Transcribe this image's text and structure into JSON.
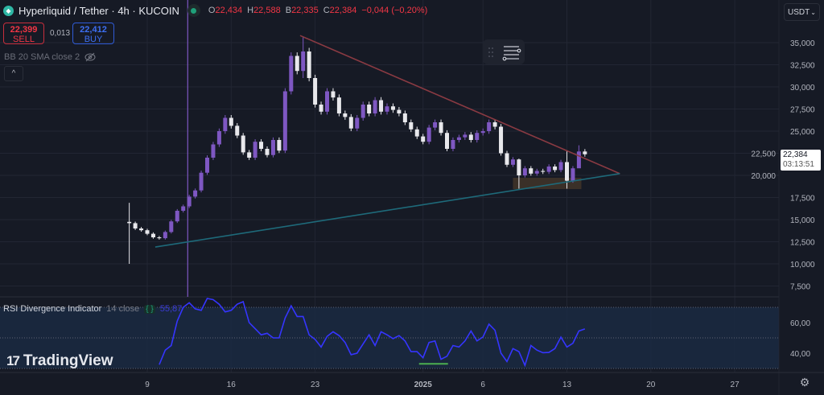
{
  "header": {
    "symbol_title": "Hyperliquid / Tether · 4h · KUCOIN",
    "ohlc": [
      {
        "key": "O",
        "value": "22,434"
      },
      {
        "key": "H",
        "value": "22,588"
      },
      {
        "key": "B",
        "value": "22,335"
      },
      {
        "key": "C",
        "value": "22,384"
      }
    ],
    "change": "−0,044 (−0,20%)",
    "sell_price": "22,399",
    "sell_label": "SELL",
    "spread": "0,013",
    "buy_price": "22,412",
    "buy_label": "BUY",
    "indicator_bb": "BB 20 SMA close 2",
    "collapse_label": "^",
    "currency": "USDT"
  },
  "last_price": {
    "price": "22,384",
    "countdown": "03:13:51"
  },
  "rsi_legend": {
    "name": "RSI Divergence Indicator",
    "params": "14 close",
    "value": "55,87"
  },
  "branding": {
    "text": "TradingView"
  },
  "colors": {
    "background": "#161a25",
    "candle_up": "#7e57c2",
    "candle_down": "#e8e8ec",
    "resistance": "#8a3a42",
    "support": "#1e6a7a",
    "rsi_line": "#3535ff",
    "rsi_band": "#1a2a44",
    "divergence": "#4caf50",
    "zone": "#4a3a2a"
  },
  "chart_data": [
    {
      "type": "candlestick",
      "title": "",
      "price_ticks": [
        "35,000",
        "32,500",
        "30,000",
        "27,500",
        "25,000",
        "22,500",
        "20,000",
        "17,500",
        "15,000",
        "12,500",
        "10,000",
        "7,500"
      ],
      "price_tick_values": [
        35000,
        32500,
        30000,
        27500,
        25000,
        22500,
        20000,
        17500,
        15000,
        12500,
        10000,
        7500
      ],
      "ylim": [
        6000,
        37000
      ],
      "x_ticks": [
        {
          "label": "9",
          "date": "2024-12-09"
        },
        {
          "label": "16",
          "date": "2024-12-16"
        },
        {
          "label": "23",
          "date": "2024-12-23"
        },
        {
          "label": "2025",
          "date": "2025-01-01"
        },
        {
          "label": "6",
          "date": "2025-01-06"
        },
        {
          "label": "13",
          "date": "2025-01-13"
        },
        {
          "label": "20",
          "date": "2025-01-20"
        },
        {
          "label": "27",
          "date": "2025-01-27"
        }
      ],
      "grid": true,
      "closes": [
        [
          "2024-12-07T12:00",
          14.6,
          10.0,
          16.9
        ],
        [
          "2024-12-08T00:00",
          14.0
        ],
        [
          "2024-12-08T12:00",
          13.8
        ],
        [
          "2024-12-09T00:00",
          13.4
        ],
        [
          "2024-12-09T12:00",
          13.0
        ],
        [
          "2024-12-10T00:00",
          12.9
        ],
        [
          "2024-12-10T12:00",
          13.6
        ],
        [
          "2024-12-11T00:00",
          14.8
        ],
        [
          "2024-12-11T12:00",
          16.0
        ],
        [
          "2024-12-12T00:00",
          16.5
        ],
        [
          "2024-12-12T12:00",
          17.6
        ],
        [
          "2024-12-13T00:00",
          18.3
        ],
        [
          "2024-12-13T12:00",
          20.3
        ],
        [
          "2024-12-14T00:00",
          22.0
        ],
        [
          "2024-12-14T12:00",
          23.5
        ],
        [
          "2024-12-15T00:00",
          25.0
        ],
        [
          "2024-12-15T12:00",
          26.5
        ],
        [
          "2024-12-16T00:00",
          25.6
        ],
        [
          "2024-12-16T12:00",
          24.5
        ],
        [
          "2024-12-17T00:00",
          22.6
        ],
        [
          "2024-12-17T12:00",
          22.0
        ],
        [
          "2024-12-18T00:00",
          23.8
        ],
        [
          "2024-12-18T12:00",
          23.0
        ],
        [
          "2024-12-19T00:00",
          22.3
        ],
        [
          "2024-12-19T12:00",
          24.0
        ],
        [
          "2024-12-20T00:00",
          22.8
        ],
        [
          "2024-12-20T12:00",
          29.5
        ],
        [
          "2024-12-21T00:00",
          33.5
        ],
        [
          "2024-12-21T12:00",
          31.8
        ],
        [
          "2024-12-22T00:00",
          34.0,
          31.0,
          35.7
        ],
        [
          "2024-12-22T12:00",
          31.0
        ],
        [
          "2024-12-23T00:00",
          28.0
        ],
        [
          "2024-12-23T12:00",
          27.2
        ],
        [
          "2024-12-24T00:00",
          29.5
        ],
        [
          "2024-12-24T12:00",
          28.8
        ],
        [
          "2024-12-25T00:00",
          27.0
        ],
        [
          "2024-12-25T12:00",
          26.6
        ],
        [
          "2024-12-26T00:00",
          25.3
        ],
        [
          "2024-12-26T12:00",
          26.5
        ],
        [
          "2024-12-27T00:00",
          28.0
        ],
        [
          "2024-12-27T12:00",
          27.0
        ],
        [
          "2024-12-28T00:00",
          28.5
        ],
        [
          "2024-12-28T12:00",
          27.2
        ],
        [
          "2024-12-29T00:00",
          27.8
        ],
        [
          "2024-12-29T12:00",
          27.4
        ],
        [
          "2024-12-30T00:00",
          27.0
        ],
        [
          "2024-12-30T12:00",
          26.0
        ],
        [
          "2024-12-31T00:00",
          25.2
        ],
        [
          "2024-12-31T12:00",
          24.4
        ],
        [
          "2025-01-01T00:00",
          23.8
        ],
        [
          "2025-01-01T12:00",
          25.4
        ],
        [
          "2025-01-02T00:00",
          26.0
        ],
        [
          "2025-01-02T12:00",
          24.8
        ],
        [
          "2025-01-03T00:00",
          23.0
        ],
        [
          "2025-01-03T12:00",
          24.0
        ],
        [
          "2025-01-04T00:00",
          24.3
        ],
        [
          "2025-01-04T12:00",
          24.6
        ],
        [
          "2025-01-05T00:00",
          24.0
        ],
        [
          "2025-01-05T12:00",
          24.8
        ],
        [
          "2025-01-06T00:00",
          25.0
        ],
        [
          "2025-01-06T12:00",
          26.0
        ],
        [
          "2025-01-07T00:00",
          25.5
        ],
        [
          "2025-01-07T12:00",
          22.5
        ],
        [
          "2025-01-08T00:00",
          21.2
        ],
        [
          "2025-01-08T12:00",
          21.8
        ],
        [
          "2025-01-09T00:00",
          20.0,
          18.5,
          21.9
        ],
        [
          "2025-01-09T12:00",
          20.8
        ],
        [
          "2025-01-10T00:00",
          20.2
        ],
        [
          "2025-01-10T12:00",
          20.5
        ],
        [
          "2025-01-11T00:00",
          20.4
        ],
        [
          "2025-01-11T12:00",
          21.0
        ],
        [
          "2025-01-12T00:00",
          20.6
        ],
        [
          "2025-01-12T12:00",
          21.5
        ],
        [
          "2025-01-13T00:00",
          19.4,
          18.5,
          22.8
        ],
        [
          "2025-01-13T12:00",
          20.8
        ],
        [
          "2025-01-14T00:00",
          22.7,
          22.0,
          23.4
        ],
        [
          "2025-01-14T12:00",
          22.384
        ]
      ],
      "price_unit_multiplier": 1000,
      "drawings": {
        "resistance_line": {
          "from": [
            "2024-12-21T18:00",
            35800
          ],
          "to": [
            "2025-01-17T10:00",
            20200
          ]
        },
        "support_line": {
          "from": [
            "2024-12-09T16:00",
            11900
          ],
          "to": [
            "2025-01-17T10:00",
            20200
          ]
        },
        "support_zone": {
          "from": "2025-01-08T12:00",
          "to": "2025-01-14T05:00",
          "low": 18450,
          "high": 19730
        },
        "vertical_line": {
          "date": "2024-12-12T09:00"
        }
      }
    },
    {
      "type": "line",
      "title": "RSI Divergence Indicator",
      "y_ticks": [
        "60,00",
        "40,00"
      ],
      "y_tick_values": [
        60,
        40
      ],
      "band": [
        30,
        70
      ],
      "midline": 50,
      "ylim": [
        25,
        77
      ],
      "start": "2024-12-10T00:00",
      "step_hours": 12,
      "values": [
        32.5,
        42,
        45,
        61,
        70,
        73,
        69,
        68,
        76,
        75,
        72,
        67,
        68,
        72,
        73.7,
        60,
        56,
        52,
        53,
        50,
        50,
        63,
        71,
        64,
        64,
        52,
        49,
        44,
        51,
        54,
        51.5,
        47,
        39,
        40,
        46,
        52,
        45,
        54,
        52,
        49.5,
        51.5,
        48,
        41,
        41,
        37,
        47,
        48,
        36,
        38,
        45,
        44,
        48,
        54.5,
        48,
        50.6,
        59,
        55,
        40,
        34.5,
        43,
        41,
        32,
        45,
        42,
        40.3,
        40.5,
        43,
        50.5,
        44,
        46.5,
        54.5,
        55.87
      ],
      "divergence_line": {
        "from": "2024-12-31T16:00",
        "to": "2025-01-03T02:00",
        "value": 33
      }
    }
  ]
}
